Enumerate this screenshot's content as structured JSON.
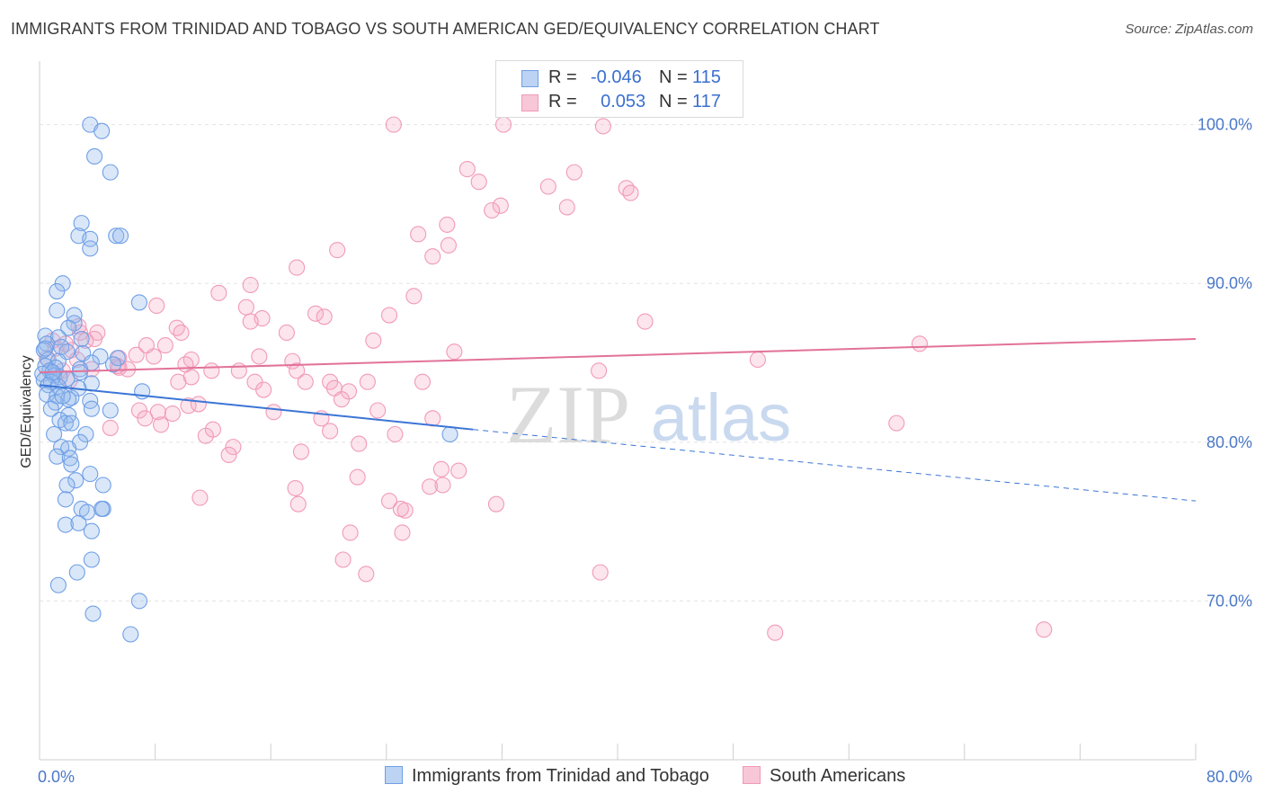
{
  "title": "IMMIGRANTS FROM TRINIDAD AND TOBAGO VS SOUTH AMERICAN GED/EQUIVALENCY CORRELATION CHART",
  "source": "Source: ZipAtlas.com",
  "watermark": {
    "zip": "ZIP",
    "atlas": "atlas"
  },
  "legend": {
    "r_label": "R =",
    "n_label": "N =",
    "rows": [
      {
        "r": "-0.046",
        "n": "115"
      },
      {
        "r": "0.053",
        "n": "117"
      }
    ]
  },
  "colors": {
    "blue": "#6f9fe6",
    "blue_line": "#3b75d6",
    "pink": "#f19ab8",
    "pink_line": "#e2729a",
    "axis_label": "#4a78c8",
    "grid": "#e3e3e3"
  },
  "chart_data": {
    "type": "scatter",
    "title": "IMMIGRANTS FROM TRINIDAD AND TOBAGO VS SOUTH AMERICAN GED/EQUIVALENCY CORRELATION CHART",
    "xlabel": "",
    "ylabel": "GED/Equivalency",
    "xlim": [
      0,
      80
    ],
    "ylim": [
      60,
      104
    ],
    "x_tick_labels": [
      "0.0%",
      "80.0%"
    ],
    "y_ticks": [
      70,
      80,
      90,
      100
    ],
    "y_tick_labels": [
      "70.0%",
      "80.0%",
      "90.0%",
      "100.0%"
    ],
    "grid": true,
    "legend_position": "top-center",
    "series": [
      {
        "name": "Immigrants from Trinidad and Tobago",
        "color": "#6f9fe6",
        "trend": {
          "x": [
            0,
            30
          ],
          "y": [
            83.6,
            80.8
          ],
          "dashed_to": [
            80,
            76.3
          ]
        },
        "points": [
          [
            3.5,
            100
          ],
          [
            4.3,
            99.6
          ],
          [
            3.8,
            98
          ],
          [
            4.9,
            97
          ],
          [
            2.9,
            93.8
          ],
          [
            2.7,
            93
          ],
          [
            3.5,
            92.8
          ],
          [
            3.5,
            92.2
          ],
          [
            5.3,
            93
          ],
          [
            5.6,
            93
          ],
          [
            1.6,
            90
          ],
          [
            1.2,
            89.5
          ],
          [
            6.9,
            88.8
          ],
          [
            1.2,
            88.3
          ],
          [
            2.4,
            88
          ],
          [
            2.4,
            87.5
          ],
          [
            2.0,
            87.2
          ],
          [
            0.4,
            86.7
          ],
          [
            1.3,
            86.6
          ],
          [
            2.9,
            86.5
          ],
          [
            0.5,
            86.2
          ],
          [
            1.5,
            86.0
          ],
          [
            0.3,
            85.8
          ],
          [
            1.9,
            85.7
          ],
          [
            3.0,
            85.6
          ],
          [
            4.2,
            85.4
          ],
          [
            5.4,
            85.3
          ],
          [
            0.6,
            85.2
          ],
          [
            1.3,
            85.1
          ],
          [
            3.6,
            85.0
          ],
          [
            5.1,
            84.9
          ],
          [
            0.4,
            84.8
          ],
          [
            1.1,
            84.7
          ],
          [
            2.8,
            84.6
          ],
          [
            0.7,
            84.5
          ],
          [
            2.8,
            84.4
          ],
          [
            0.2,
            84.3
          ],
          [
            1.0,
            84.2
          ],
          [
            1.4,
            84.1
          ],
          [
            1.9,
            84.0
          ],
          [
            0.3,
            83.9
          ],
          [
            0.8,
            83.8
          ],
          [
            3.6,
            83.7
          ],
          [
            0.6,
            83.6
          ],
          [
            1.3,
            83.5
          ],
          [
            2.7,
            83.4
          ],
          [
            7.1,
            83.2
          ],
          [
            0.5,
            83.0
          ],
          [
            1.2,
            82.9
          ],
          [
            2.2,
            82.8
          ],
          [
            2.0,
            82.7
          ],
          [
            3.5,
            82.6
          ],
          [
            1.1,
            82.5
          ],
          [
            4.9,
            82.0
          ],
          [
            3.6,
            82.1
          ],
          [
            0.8,
            82.1
          ],
          [
            2.0,
            81.7
          ],
          [
            1.4,
            81.4
          ],
          [
            1.8,
            81.2
          ],
          [
            2.2,
            81.2
          ],
          [
            1.0,
            80.5
          ],
          [
            3.2,
            80.5
          ],
          [
            2.8,
            80.0
          ],
          [
            1.5,
            79.7
          ],
          [
            2.0,
            79.6
          ],
          [
            1.2,
            79.1
          ],
          [
            2.1,
            79.0
          ],
          [
            2.2,
            78.6
          ],
          [
            3.5,
            78.0
          ],
          [
            2.5,
            77.6
          ],
          [
            4.4,
            77.3
          ],
          [
            1.9,
            77.3
          ],
          [
            1.8,
            76.4
          ],
          [
            2.9,
            75.8
          ],
          [
            4.4,
            75.8
          ],
          [
            3.3,
            75.6
          ],
          [
            4.3,
            75.8
          ],
          [
            1.8,
            74.8
          ],
          [
            2.7,
            74.9
          ],
          [
            3.6,
            74.4
          ],
          [
            3.6,
            72.6
          ],
          [
            2.6,
            71.8
          ],
          [
            1.3,
            71.0
          ],
          [
            6.9,
            70.0
          ],
          [
            3.7,
            69.2
          ],
          [
            6.3,
            67.9
          ],
          [
            28.4,
            80.5
          ],
          [
            0.4,
            85.9
          ],
          [
            0.9,
            84.4
          ],
          [
            1.6,
            82.9
          ]
        ]
      },
      {
        "name": "South Americans",
        "color": "#f19ab8",
        "trend": {
          "x": [
            0,
            80
          ],
          "y": [
            84.4,
            86.5
          ]
        },
        "points": [
          [
            24.5,
            100
          ],
          [
            32.1,
            100
          ],
          [
            39.0,
            99.9
          ],
          [
            29.6,
            97.2
          ],
          [
            30.4,
            96.4
          ],
          [
            37.0,
            97.0
          ],
          [
            35.2,
            96.1
          ],
          [
            40.6,
            96.0
          ],
          [
            40.9,
            95.7
          ],
          [
            31.9,
            94.9
          ],
          [
            31.3,
            94.6
          ],
          [
            36.5,
            94.8
          ],
          [
            28.2,
            93.7
          ],
          [
            26.2,
            93.1
          ],
          [
            28.3,
            92.4
          ],
          [
            20.6,
            92.1
          ],
          [
            27.2,
            91.7
          ],
          [
            17.8,
            91.0
          ],
          [
            14.6,
            89.9
          ],
          [
            12.4,
            89.4
          ],
          [
            25.9,
            89.2
          ],
          [
            8.1,
            88.6
          ],
          [
            14.3,
            88.5
          ],
          [
            15.4,
            87.8
          ],
          [
            19.1,
            88.1
          ],
          [
            19.7,
            87.9
          ],
          [
            24.2,
            88.0
          ],
          [
            14.6,
            87.6
          ],
          [
            41.9,
            87.6
          ],
          [
            9.5,
            87.2
          ],
          [
            9.8,
            86.9
          ],
          [
            4.0,
            86.9
          ],
          [
            2.8,
            86.9
          ],
          [
            17.1,
            86.9
          ],
          [
            3.8,
            86.5
          ],
          [
            23.1,
            86.4
          ],
          [
            60.9,
            86.2
          ],
          [
            8.7,
            86.1
          ],
          [
            2.2,
            85.8
          ],
          [
            28.7,
            85.7
          ],
          [
            6.7,
            85.5
          ],
          [
            15.2,
            85.4
          ],
          [
            7.9,
            85.4
          ],
          [
            5.5,
            85.3
          ],
          [
            10.5,
            85.2
          ],
          [
            17.5,
            85.1
          ],
          [
            49.7,
            85.2
          ],
          [
            10.1,
            84.9
          ],
          [
            6.1,
            84.6
          ],
          [
            5.4,
            84.8
          ],
          [
            3.6,
            84.6
          ],
          [
            11.9,
            84.5
          ],
          [
            17.8,
            84.5
          ],
          [
            13.8,
            84.5
          ],
          [
            38.7,
            84.5
          ],
          [
            10.5,
            84.1
          ],
          [
            9.6,
            83.8
          ],
          [
            14.9,
            83.8
          ],
          [
            18.4,
            83.8
          ],
          [
            20.1,
            83.8
          ],
          [
            22.7,
            83.8
          ],
          [
            26.5,
            83.8
          ],
          [
            15.5,
            83.3
          ],
          [
            20.4,
            83.4
          ],
          [
            21.4,
            83.2
          ],
          [
            20.9,
            82.7
          ],
          [
            10.3,
            82.3
          ],
          [
            11.0,
            82.4
          ],
          [
            6.9,
            82.0
          ],
          [
            8.2,
            81.9
          ],
          [
            16.2,
            81.9
          ],
          [
            23.4,
            82.0
          ],
          [
            9.2,
            81.8
          ],
          [
            19.5,
            81.5
          ],
          [
            7.3,
            81.5
          ],
          [
            27.2,
            81.5
          ],
          [
            8.4,
            81.1
          ],
          [
            4.9,
            80.9
          ],
          [
            12.0,
            80.8
          ],
          [
            20.1,
            80.7
          ],
          [
            24.6,
            80.5
          ],
          [
            11.5,
            80.4
          ],
          [
            13.4,
            79.7
          ],
          [
            22.1,
            79.9
          ],
          [
            13.1,
            79.2
          ],
          [
            18.1,
            79.4
          ],
          [
            29.0,
            78.2
          ],
          [
            27.8,
            78.3
          ],
          [
            22.0,
            77.8
          ],
          [
            17.7,
            77.1
          ],
          [
            27.9,
            77.3
          ],
          [
            27.0,
            77.2
          ],
          [
            11.1,
            76.5
          ],
          [
            17.9,
            76.1
          ],
          [
            24.2,
            76.3
          ],
          [
            31.6,
            76.1
          ],
          [
            25.3,
            75.7
          ],
          [
            21.5,
            74.3
          ],
          [
            25.1,
            74.3
          ],
          [
            21.0,
            72.6
          ],
          [
            22.6,
            71.7
          ],
          [
            38.8,
            71.8
          ],
          [
            50.9,
            68.0
          ],
          [
            69.5,
            68.2
          ],
          [
            59.3,
            81.2
          ],
          [
            25.0,
            75.8
          ],
          [
            3.2,
            86.4
          ],
          [
            1.8,
            86.2
          ],
          [
            2.6,
            85.2
          ],
          [
            1.6,
            84.5
          ],
          [
            0.9,
            86.4
          ],
          [
            1.1,
            85.9
          ],
          [
            0.5,
            85.3
          ],
          [
            2.7,
            87.3
          ],
          [
            5.5,
            84.7
          ],
          [
            7.4,
            86.1
          ],
          [
            2.1,
            83.9
          ]
        ]
      }
    ]
  }
}
